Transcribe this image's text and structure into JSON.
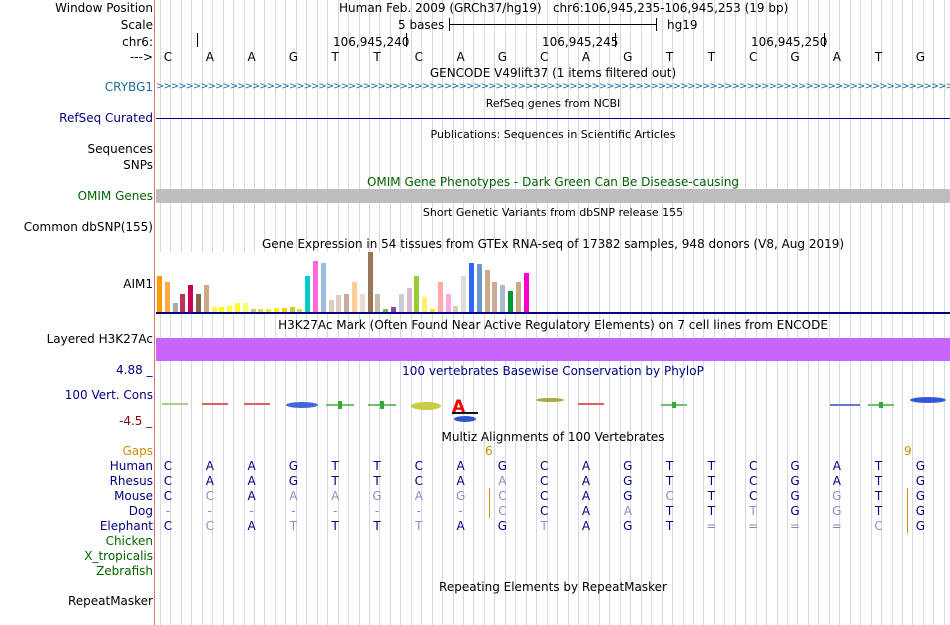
{
  "colors": {
    "crybg1": "#1a6c9c",
    "refseq": "#000080",
    "omim": "#006400",
    "gaps": "#d78a00",
    "human": "#000080",
    "chicken": "#006400",
    "h3k27ac": "#c864ff",
    "phylo": "#000080",
    "phylo_neg": "#8b0000"
  },
  "header": {
    "window_position_label": "Window Position",
    "window_position_text": "Human Feb. 2009 (GRCh37/hg19)   chr6:106,945,235-106,945,253 (19 bp)",
    "scale_label": "Scale",
    "scale_text": "5 bases",
    "scale_assembly": "hg19",
    "chrom_label": "chr6:",
    "coord_ticks": [
      "106,945,240",
      "106,945,245",
      "106,945,250"
    ],
    "strand_label": "--->",
    "bases": [
      "C",
      "A",
      "A",
      "G",
      "T",
      "T",
      "C",
      "A",
      "G",
      "C",
      "A",
      "G",
      "T",
      "T",
      "C",
      "G",
      "A",
      "T",
      "G"
    ]
  },
  "tracks": {
    "gencode": {
      "title": "GENCODE V49lift37 (1 items filtered out)",
      "gene_label": "CRYBG1"
    },
    "refseq": {
      "title": "RefSeq genes from NCBI",
      "label": "RefSeq Curated"
    },
    "publications": {
      "title": "Publications: Sequences in Scientific Articles",
      "label_line1": "Sequences",
      "label_line2": "SNPs"
    },
    "omim": {
      "title": "OMIM Gene Phenotypes - Dark Green Can Be Disease-causing",
      "label": "OMIM Genes"
    },
    "dbsnp": {
      "title": "Short Genetic Variants from dbSNP release 155",
      "label": "Common dbSNP(155)"
    },
    "gtex": {
      "title": "Gene Expression in 54 tissues from GTEx RNA-seq of 17382 samples, 948 donors (V8, Aug 2019)",
      "gene_label": "AIM1",
      "bar_values": [
        0.6,
        0.5,
        0.15,
        0.3,
        0.45,
        0.3,
        0.45,
        0.08,
        0.08,
        0.1,
        0.15,
        0.15,
        0.05,
        0.05,
        0.05,
        0.07,
        0.07,
        0.08,
        0.05,
        0.6,
        0.85,
        0.82,
        0.2,
        0.28,
        0.3,
        0.5,
        0.3,
        1.0,
        0.3,
        0.05,
        0.08,
        0.3,
        0.4,
        0.6,
        0.25,
        0.05,
        0.5,
        0.3,
        0.1,
        0.6,
        0.82,
        0.8,
        0.7,
        0.5,
        0.45,
        0.35,
        0.5,
        0.65
      ],
      "bar_colors": [
        "#ff9900",
        "#ffaa44",
        "#aaaaaa",
        "#bb3355",
        "#cc0055",
        "#886644",
        "#ccaa88",
        "#ffee55",
        "#ffff00",
        "#ffff33",
        "#ffff22",
        "#ffff66",
        "#cccc66",
        "#dddd44",
        "#eeee22",
        "#ffee00",
        "#ffcc00",
        "#cccc22",
        "#dddd55",
        "#00cccc",
        "#ff66dd",
        "#99bbdd",
        "#ddccbb",
        "#ddccbb",
        "#ccaa99",
        "#ffcc99",
        "#eeddcc",
        "#997755",
        "#ccbbaa",
        "#66bb66",
        "#8844aa",
        "#ccccdd",
        "#ddbbcc",
        "#99cc33",
        "#ffee77",
        "#eeee00",
        "#ffaaaa",
        "#ffaadd",
        "#ddccbb",
        "#dddddd",
        "#3366ff",
        "#6699cc",
        "#ccaa88",
        "#ccaa99",
        "#aabbcc",
        "#009933",
        "#ccaa88",
        "#ff00cc"
      ]
    },
    "h3k27ac": {
      "title": "H3K27Ac Mark (Often Found Near Active Regulatory Elements) on 7 cell lines from ENCODE",
      "label": "Layered H3K27Ac"
    },
    "phylop": {
      "title": "100 vertebrates Basewise Conservation by PhyloP",
      "label": "100 Vert. Cons",
      "max": "4.88 _",
      "min": "-4.5 _"
    },
    "multiz": {
      "title": "Multiz Alignments of 100 Vertebrates",
      "gaps_label": "Gaps",
      "gap_counts": [
        "6",
        "9"
      ],
      "species": [
        {
          "name": "Human",
          "seq": [
            "C",
            "A",
            "A",
            "G",
            "T",
            "T",
            "C",
            "A",
            "G",
            "C",
            "A",
            "G",
            "T",
            "T",
            "C",
            "G",
            "A",
            "T",
            "G"
          ]
        },
        {
          "name": "Rhesus",
          "seq": [
            "C",
            "A",
            "A",
            "G",
            "T",
            "T",
            "C",
            "A",
            "A",
            "C",
            "A",
            "G",
            "T",
            "T",
            "C",
            "G",
            "A",
            "T",
            "G"
          ]
        },
        {
          "name": "Mouse",
          "seq": [
            "C",
            "C",
            "A",
            "A",
            "A",
            "G",
            "A",
            "G",
            "C",
            "C",
            "A",
            "G",
            "C",
            "T",
            "C",
            "G",
            "G",
            "T",
            "G"
          ]
        },
        {
          "name": "Dog",
          "seq": [
            "-",
            "-",
            "-",
            "-",
            "-",
            "-",
            "-",
            "-",
            "C",
            "C",
            "A",
            "A",
            "T",
            "T",
            "T",
            "G",
            "G",
            "T",
            "G"
          ]
        },
        {
          "name": "Elephant",
          "seq": [
            "C",
            "C",
            "A",
            "T",
            "T",
            "T",
            "T",
            "A",
            "G",
            "T",
            "A",
            "G",
            "T",
            "=",
            "=",
            "=",
            "=",
            "C",
            "G"
          ]
        },
        {
          "name": "Chicken",
          "seq": []
        },
        {
          "name": "X_tropicalis",
          "seq": []
        },
        {
          "name": "Zebrafish",
          "seq": []
        }
      ]
    },
    "repeatmasker": {
      "title": "Repeating Elements by RepeatMasker",
      "label": "RepeatMasker"
    }
  }
}
